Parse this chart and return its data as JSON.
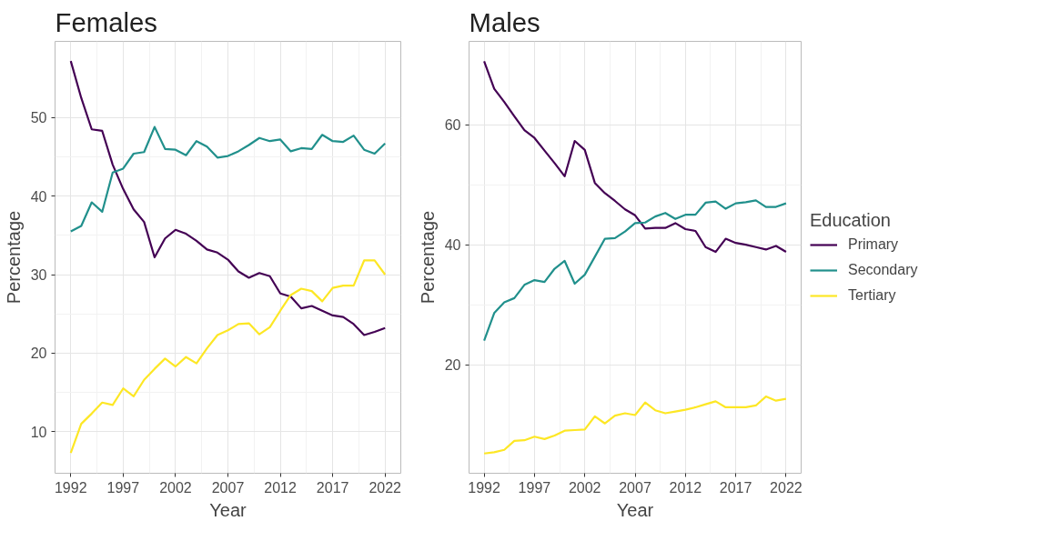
{
  "chart_data": [
    {
      "type": "line",
      "title": "Females",
      "xlabel": "Year",
      "ylabel": "Percentage",
      "grid": true,
      "legend": false,
      "x": [
        1992,
        1993,
        1994,
        1995,
        1996,
        1997,
        1998,
        1999,
        2000,
        2001,
        2002,
        2003,
        2004,
        2005,
        2006,
        2007,
        2008,
        2009,
        2010,
        2011,
        2012,
        2013,
        2014,
        2015,
        2016,
        2017,
        2018,
        2019,
        2020,
        2021,
        2022
      ],
      "xlim": [
        1990.5,
        2023.5
      ],
      "xticks": [
        1992,
        1997,
        2002,
        2007,
        2012,
        2017,
        2022
      ],
      "ylim": [
        4.7,
        59.7
      ],
      "yticks": [
        10,
        20,
        30,
        40,
        50
      ],
      "series": [
        {
          "color": "#440154",
          "values": [
            57.2,
            52.5,
            48.5,
            48.3,
            44.0,
            40.9,
            38.3,
            36.7,
            32.2,
            34.6,
            35.7,
            35.2,
            34.3,
            33.2,
            32.8,
            31.9,
            30.4,
            29.6,
            30.2,
            29.8,
            27.6,
            27.2,
            25.7,
            26.0,
            25.4,
            24.8,
            24.6,
            23.7,
            22.3,
            22.7,
            23.2
          ]
        },
        {
          "color": "#21908c",
          "values": [
            35.5,
            36.2,
            39.2,
            38.0,
            43.0,
            43.5,
            45.4,
            45.6,
            48.8,
            46.0,
            45.9,
            45.2,
            47.0,
            46.3,
            44.9,
            45.1,
            45.7,
            46.5,
            47.4,
            47.0,
            47.2,
            45.7,
            46.1,
            46.0,
            47.8,
            47.0,
            46.9,
            47.7,
            45.9,
            45.4,
            46.7
          ]
        },
        {
          "color": "#fde725",
          "values": [
            7.3,
            11.0,
            12.3,
            13.7,
            13.4,
            15.5,
            14.5,
            16.6,
            18.0,
            19.3,
            18.3,
            19.5,
            18.7,
            20.6,
            22.3,
            22.9,
            23.7,
            23.8,
            22.4,
            23.3,
            25.4,
            27.4,
            28.2,
            27.9,
            26.6,
            28.3,
            28.6,
            28.6,
            31.8,
            31.8,
            30.0
          ]
        }
      ]
    },
    {
      "type": "line",
      "title": "Males",
      "xlabel": "Year",
      "ylabel": "Percentage",
      "grid": true,
      "legend": "right",
      "legend_title": "Education",
      "x": [
        1992,
        1993,
        1994,
        1995,
        1996,
        1997,
        1998,
        1999,
        2000,
        2001,
        2002,
        2003,
        2004,
        2005,
        2006,
        2007,
        2008,
        2009,
        2010,
        2011,
        2012,
        2013,
        2014,
        2015,
        2016,
        2017,
        2018,
        2019,
        2020,
        2021,
        2022
      ],
      "xlim": [
        1990.5,
        2023.5
      ],
      "xticks": [
        1992,
        1997,
        2002,
        2007,
        2012,
        2017,
        2022
      ],
      "ylim": [
        1.9,
        73.9
      ],
      "yticks": [
        20,
        40,
        60
      ],
      "series": [
        {
          "name": "Primary",
          "color": "#440154",
          "values": [
            70.6,
            66.0,
            63.8,
            61.4,
            59.1,
            57.8,
            55.7,
            53.6,
            51.4,
            57.3,
            55.8,
            50.3,
            48.6,
            47.3,
            45.9,
            44.9,
            42.7,
            42.8,
            42.8,
            43.6,
            42.6,
            42.3,
            39.6,
            38.8,
            41.0,
            40.3,
            40.0,
            39.6,
            39.2,
            39.8,
            38.8
          ]
        },
        {
          "name": "Secondary",
          "color": "#21908c",
          "values": [
            24.0,
            28.6,
            30.4,
            31.1,
            33.3,
            34.1,
            33.8,
            36.0,
            37.3,
            33.5,
            35.0,
            38.0,
            41.0,
            41.1,
            42.2,
            43.6,
            43.7,
            44.7,
            45.3,
            44.3,
            45.0,
            45.0,
            47.0,
            47.2,
            46.0,
            46.9,
            47.1,
            47.4,
            46.3,
            46.3,
            46.9
          ]
        },
        {
          "name": "Tertiary",
          "color": "#fde725",
          "values": [
            5.2,
            5.4,
            5.8,
            7.3,
            7.4,
            8.0,
            7.6,
            8.2,
            9.0,
            9.1,
            9.2,
            11.4,
            10.2,
            11.5,
            11.9,
            11.6,
            13.7,
            12.4,
            11.9,
            12.2,
            12.5,
            12.9,
            13.4,
            13.9,
            12.9,
            12.9,
            12.9,
            13.2,
            14.7,
            14.0,
            14.3
          ]
        }
      ]
    }
  ]
}
